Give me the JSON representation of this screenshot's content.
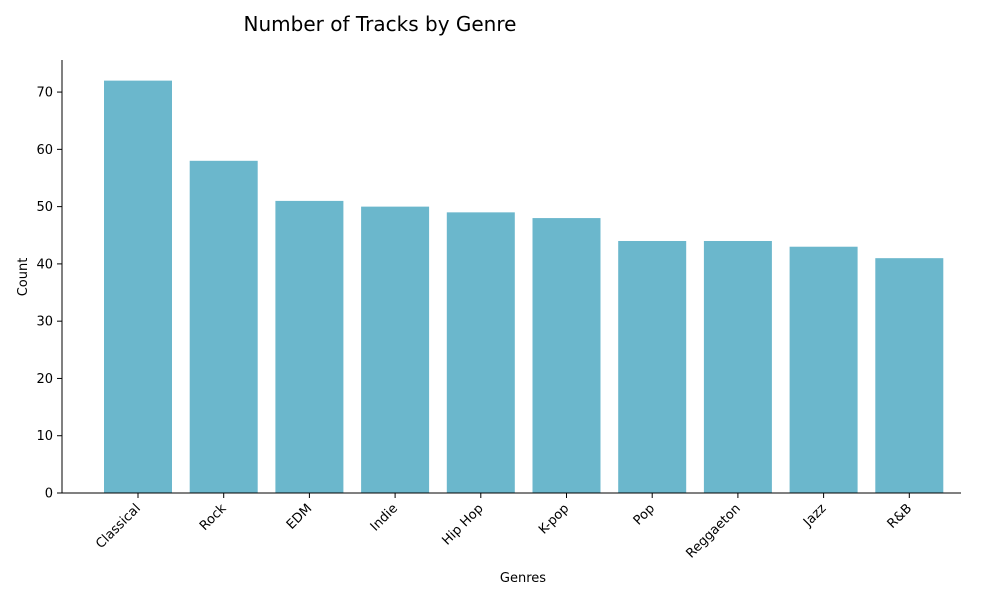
{
  "chart_data": {
    "type": "bar",
    "title": "Number of Tracks by Genre",
    "xlabel": "Genres",
    "ylabel": "Count",
    "categories": [
      "Classical",
      "Rock",
      "EDM",
      "Indie",
      "Hip Hop",
      "K-pop",
      "Pop",
      "Reggaeton",
      "Jazz",
      "R&B"
    ],
    "values": [
      72,
      58,
      51,
      50,
      49,
      48,
      44,
      44,
      43,
      41
    ],
    "ylim": [
      0,
      75.6
    ],
    "yticks": [
      0,
      10,
      20,
      30,
      40,
      50,
      60,
      70
    ],
    "bar_color": "#6bb7cc",
    "grid": false,
    "legend": "none"
  }
}
